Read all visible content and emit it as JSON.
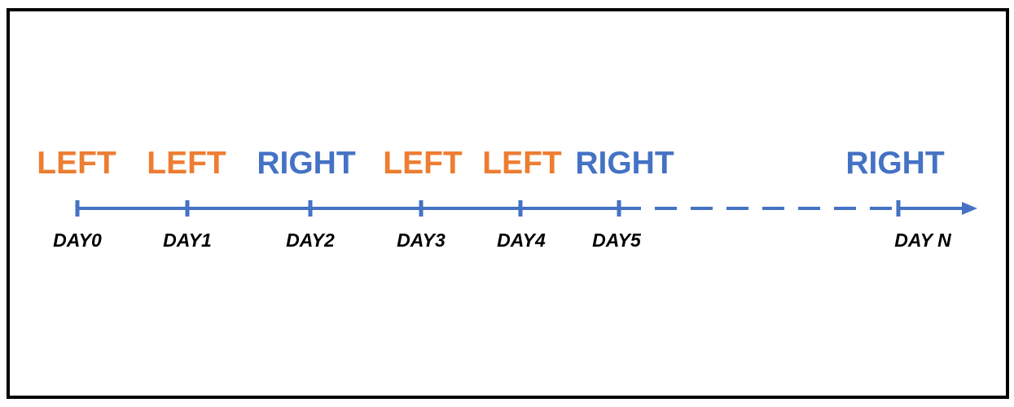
{
  "colors": {
    "left": "#ED7D31",
    "right": "#4472C4",
    "axis": "#4472C4",
    "day_text": "#000000",
    "border": "#000000"
  },
  "timeline": {
    "points": [
      {
        "day": "DAY0",
        "direction": "LEFT"
      },
      {
        "day": "DAY1",
        "direction": "LEFT"
      },
      {
        "day": "DAY2",
        "direction": "RIGHT"
      },
      {
        "day": "DAY3",
        "direction": "LEFT"
      },
      {
        "day": "DAY4",
        "direction": "LEFT"
      },
      {
        "day": "DAY5",
        "direction": "RIGHT"
      },
      {
        "day": "DAY N",
        "direction": "RIGHT"
      }
    ],
    "continuation": "dashed"
  }
}
